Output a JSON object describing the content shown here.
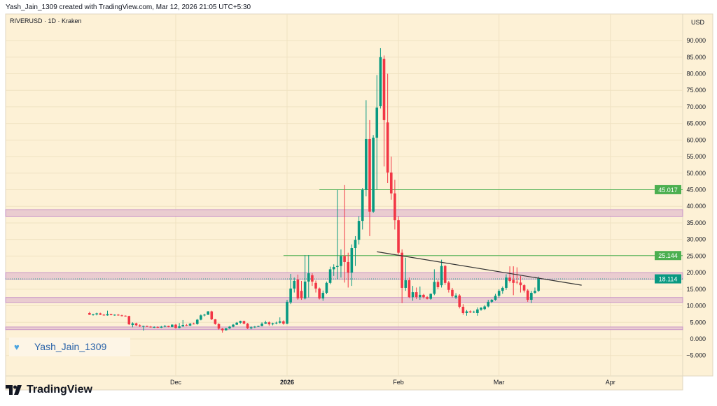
{
  "header": {
    "caption": "Yash_Jain_1309 created with TradingView.com, Mar 12, 2026 21:05 UTC+5:30",
    "symbol": "RIVERUSD · 1D · Kraken"
  },
  "watermark": {
    "text": "Yash_Jain_1309",
    "icon": "blue-heart-icon"
  },
  "footer": {
    "logo_text": "TradingView",
    "icon": "tradingview-logo-icon"
  },
  "colors": {
    "background": "#fdf1d6",
    "up": "#089981",
    "down": "#f23645",
    "zone": "#e9c8d0",
    "zone_border": "#c58fc8",
    "level": "#4caf50",
    "trendline": "#333333"
  },
  "chart_data": {
    "type": "candlestick",
    "currency_label": "USD",
    "ylim": [
      -7,
      93
    ],
    "y_ticks": [
      "90.000",
      "85.000",
      "80.000",
      "75.000",
      "70.000",
      "65.000",
      "60.000",
      "55.000",
      "50.000",
      "45.000",
      "40.000",
      "35.000",
      "30.000",
      "25.000",
      "20.000",
      "15.000",
      "10.000",
      "5.000",
      "0.000",
      "−5.000"
    ],
    "x_ticks": [
      {
        "label": "Dec",
        "date": "2025-12-01"
      },
      {
        "label": "2026",
        "date": "2026-01-01"
      },
      {
        "label": "Feb",
        "date": "2026-02-01"
      },
      {
        "label": "Mar",
        "date": "2026-03-01"
      },
      {
        "label": "Apr",
        "date": "2026-04-01"
      }
    ],
    "grid": true,
    "price_labels": [
      {
        "value": "45.017",
        "kind": "level"
      },
      {
        "value": "25.144",
        "kind": "level"
      },
      {
        "value": "18.114",
        "kind": "last"
      }
    ],
    "horizontal_levels": [
      {
        "price": 45.017,
        "from": "2026-01-10"
      },
      {
        "price": 25.144,
        "from": "2025-12-31"
      }
    ],
    "zones": [
      [
        37,
        39
      ],
      [
        18,
        20
      ],
      [
        11,
        12.5
      ],
      [
        2.8,
        3.6
      ]
    ],
    "trendline": {
      "from": [
        "2026-01-26",
        26.3
      ],
      "to": [
        "2026-03-24",
        16.2
      ]
    },
    "candles_columns": [
      "date",
      "open",
      "high",
      "low",
      "close"
    ],
    "candles": [
      [
        "2025-11-07",
        7.8,
        8.2,
        7.2,
        7.3
      ],
      [
        "2025-11-08",
        7.3,
        7.6,
        7.0,
        7.4
      ],
      [
        "2025-11-09",
        7.4,
        7.9,
        7.1,
        7.7
      ],
      [
        "2025-11-10",
        7.7,
        7.9,
        7.2,
        7.3
      ],
      [
        "2025-11-11",
        7.3,
        7.5,
        7.0,
        7.1
      ],
      [
        "2025-11-12",
        7.1,
        8.5,
        7.0,
        7.5
      ],
      [
        "2025-11-13",
        7.5,
        7.6,
        7.1,
        7.2
      ],
      [
        "2025-11-14",
        7.2,
        7.4,
        7.0,
        7.3
      ],
      [
        "2025-11-15",
        7.3,
        7.5,
        7.0,
        7.1
      ],
      [
        "2025-11-16",
        7.1,
        7.3,
        6.8,
        7.0
      ],
      [
        "2025-11-17",
        7.0,
        7.1,
        6.7,
        6.9
      ],
      [
        "2025-11-18",
        6.9,
        7.0,
        4.2,
        4.4
      ],
      [
        "2025-11-19",
        4.2,
        5.0,
        3.5,
        4.7
      ],
      [
        "2025-11-20",
        4.7,
        4.9,
        3.9,
        4.1
      ],
      [
        "2025-11-21",
        4.1,
        4.4,
        3.6,
        3.8
      ],
      [
        "2025-11-22",
        3.8,
        4.0,
        2.5,
        3.9
      ],
      [
        "2025-11-23",
        3.9,
        4.0,
        3.6,
        3.7
      ],
      [
        "2025-11-24",
        3.7,
        3.9,
        3.4,
        3.5
      ],
      [
        "2025-11-25",
        3.5,
        3.8,
        3.3,
        3.6
      ],
      [
        "2025-11-26",
        3.6,
        3.8,
        3.3,
        3.4
      ],
      [
        "2025-11-27",
        3.4,
        3.9,
        3.3,
        3.7
      ],
      [
        "2025-11-28",
        3.7,
        4.2,
        3.5,
        3.9
      ],
      [
        "2025-11-29",
        3.9,
        4.0,
        3.5,
        3.6
      ],
      [
        "2025-11-30",
        3.6,
        4.4,
        3.5,
        4.3
      ],
      [
        "2025-12-01",
        4.3,
        4.5,
        3.1,
        3.3
      ],
      [
        "2025-12-02",
        3.3,
        4.8,
        3.2,
        3.8
      ],
      [
        "2025-12-03",
        3.8,
        5.7,
        3.6,
        4.2
      ],
      [
        "2025-12-04",
        4.2,
        4.5,
        3.9,
        4.0
      ],
      [
        "2025-12-05",
        4.0,
        4.8,
        3.9,
        4.6
      ],
      [
        "2025-12-06",
        4.6,
        4.9,
        4.4,
        4.5
      ],
      [
        "2025-12-07",
        4.5,
        6.0,
        4.3,
        5.8
      ],
      [
        "2025-12-08",
        5.8,
        7.4,
        5.6,
        7.1
      ],
      [
        "2025-12-09",
        7.1,
        7.6,
        6.8,
        7.3
      ],
      [
        "2025-12-10",
        7.3,
        8.4,
        7.2,
        8.3
      ],
      [
        "2025-12-11",
        8.3,
        8.5,
        5.7,
        5.9
      ],
      [
        "2025-12-12",
        5.9,
        6.0,
        4.3,
        4.5
      ],
      [
        "2025-12-13",
        4.5,
        4.7,
        2.8,
        3.1
      ],
      [
        "2025-12-14",
        3.1,
        3.3,
        1.9,
        2.6
      ],
      [
        "2025-12-15",
        2.6,
        3.3,
        2.5,
        3.2
      ],
      [
        "2025-12-16",
        3.2,
        3.9,
        3.0,
        3.7
      ],
      [
        "2025-12-17",
        3.7,
        4.5,
        3.5,
        4.3
      ],
      [
        "2025-12-18",
        4.3,
        5.1,
        4.2,
        4.9
      ],
      [
        "2025-12-19",
        4.9,
        5.5,
        4.6,
        5.4
      ],
      [
        "2025-12-20",
        5.4,
        5.5,
        4.4,
        4.6
      ],
      [
        "2025-12-21",
        4.6,
        4.8,
        3.0,
        3.2
      ],
      [
        "2025-12-22",
        3.2,
        3.8,
        2.9,
        3.5
      ],
      [
        "2025-12-23",
        3.5,
        3.9,
        3.3,
        3.7
      ],
      [
        "2025-12-24",
        3.7,
        4.0,
        3.6,
        3.9
      ],
      [
        "2025-12-25",
        3.9,
        5.0,
        3.8,
        4.6
      ],
      [
        "2025-12-26",
        4.6,
        5.5,
        4.5,
        5.0
      ],
      [
        "2025-12-27",
        5.0,
        5.3,
        4.0,
        4.4
      ],
      [
        "2025-12-28",
        4.4,
        4.9,
        4.1,
        4.7
      ],
      [
        "2025-12-29",
        4.7,
        5.2,
        4.4,
        4.9
      ],
      [
        "2025-12-30",
        4.9,
        6.5,
        4.6,
        5.3
      ],
      [
        "2025-12-31",
        5.3,
        5.6,
        4.3,
        4.6
      ],
      [
        "2026-01-01",
        4.6,
        11.8,
        4.4,
        11.2
      ],
      [
        "2026-01-02",
        11.0,
        19.6,
        10.5,
        15.2
      ],
      [
        "2026-01-03",
        15.2,
        18.5,
        14.0,
        17.5
      ],
      [
        "2026-01-04",
        17.9,
        19.4,
        11.8,
        12.2
      ],
      [
        "2026-01-05",
        14.5,
        17.5,
        11.8,
        12.3
      ],
      [
        "2026-01-06",
        12.2,
        25.3,
        11.9,
        17.3
      ],
      [
        "2026-01-07",
        17.3,
        25.3,
        12.5,
        19.8
      ],
      [
        "2026-01-08",
        19.2,
        19.8,
        16.0,
        17.3
      ],
      [
        "2026-01-09",
        16.9,
        17.6,
        14.0,
        15.2
      ],
      [
        "2026-01-10",
        15.2,
        15.5,
        11.9,
        12.2
      ],
      [
        "2026-01-11",
        12.2,
        14.6,
        11.5,
        13.9
      ],
      [
        "2026-01-12",
        13.9,
        17.3,
        13.5,
        16.9
      ],
      [
        "2026-01-13",
        16.9,
        21.8,
        16.5,
        21.0
      ],
      [
        "2026-01-14",
        21.0,
        22.5,
        19.0,
        21.7
      ],
      [
        "2026-01-15",
        21.7,
        45.0,
        18.0,
        22.0
      ],
      [
        "2026-01-16",
        22.0,
        27.0,
        18.5,
        25.0
      ],
      [
        "2026-01-17",
        25.0,
        46.4,
        17.0,
        23.2
      ],
      [
        "2026-01-18",
        23.2,
        26.0,
        15.5,
        20.0
      ],
      [
        "2026-01-19",
        20.0,
        28.5,
        16.0,
        27.4
      ],
      [
        "2026-01-20",
        27.4,
        31.0,
        22.0,
        29.9
      ],
      [
        "2026-01-21",
        29.9,
        37.0,
        28.5,
        35.6
      ],
      [
        "2026-01-22",
        35.6,
        45.5,
        33.0,
        45.0
      ],
      [
        "2026-01-23",
        45.0,
        72.0,
        43.0,
        60.3
      ],
      [
        "2026-01-24",
        60.3,
        66.0,
        31.0,
        38.4
      ],
      [
        "2026-01-25",
        38.4,
        61.5,
        38.0,
        60.7
      ],
      [
        "2026-01-26",
        60.7,
        79.6,
        45.0,
        69.8
      ],
      [
        "2026-01-27",
        70.2,
        87.7,
        69.5,
        85.0
      ],
      [
        "2026-01-28",
        84.5,
        85.5,
        52.0,
        66.0
      ],
      [
        "2026-01-29",
        65.3,
        80.0,
        47.0,
        50.2
      ],
      [
        "2026-01-30",
        50.2,
        55.0,
        42.0,
        43.9
      ],
      [
        "2026-01-31",
        43.9,
        48.0,
        33.0,
        35.8
      ],
      [
        "2026-02-01",
        35.8,
        37.0,
        25.5,
        26.0
      ],
      [
        "2026-02-02",
        26.0,
        27.0,
        10.8,
        15.4
      ],
      [
        "2026-02-03",
        15.4,
        24.5,
        14.5,
        17.7
      ],
      [
        "2026-02-04",
        17.7,
        18.5,
        12.3,
        12.6
      ],
      [
        "2026-02-05",
        12.6,
        16.0,
        11.5,
        14.1
      ],
      [
        "2026-02-06",
        14.1,
        15.5,
        12.0,
        12.6
      ],
      [
        "2026-02-07",
        12.6,
        15.8,
        11.8,
        13.3
      ],
      [
        "2026-02-08",
        13.3,
        13.6,
        12.2,
        12.6
      ],
      [
        "2026-02-09",
        12.6,
        12.9,
        11.9,
        12.1
      ],
      [
        "2026-02-10",
        12.1,
        13.7,
        11.8,
        13.6
      ],
      [
        "2026-02-11",
        13.6,
        21.0,
        13.2,
        17.2
      ],
      [
        "2026-02-12",
        17.2,
        17.8,
        15.0,
        15.6
      ],
      [
        "2026-02-13",
        16.2,
        23.9,
        15.5,
        22.0
      ],
      [
        "2026-02-14",
        22.0,
        22.3,
        16.3,
        16.9
      ],
      [
        "2026-02-15",
        17.0,
        17.5,
        14.0,
        14.8
      ],
      [
        "2026-02-16",
        14.8,
        15.4,
        12.5,
        12.9
      ],
      [
        "2026-02-17",
        12.5,
        13.8,
        12.0,
        13.1
      ],
      [
        "2026-02-18",
        13.1,
        13.5,
        9.2,
        9.7
      ],
      [
        "2026-02-19",
        9.7,
        10.5,
        7.3,
        7.8
      ],
      [
        "2026-02-20",
        7.8,
        8.7,
        7.0,
        8.3
      ],
      [
        "2026-02-21",
        8.3,
        8.6,
        7.8,
        8.0
      ],
      [
        "2026-02-22",
        8.0,
        8.5,
        7.8,
        8.2
      ],
      [
        "2026-02-23",
        7.8,
        9.5,
        7.0,
        8.9
      ],
      [
        "2026-02-24",
        8.8,
        9.6,
        8.5,
        9.4
      ],
      [
        "2026-02-25",
        9.0,
        10.2,
        8.7,
        9.8
      ],
      [
        "2026-02-26",
        9.8,
        11.8,
        9.5,
        11.2
      ],
      [
        "2026-02-27",
        11.2,
        12.0,
        10.8,
        11.8
      ],
      [
        "2026-02-28",
        11.8,
        13.6,
        11.5,
        13.0
      ],
      [
        "2026-03-01",
        13.0,
        15.0,
        12.4,
        14.5
      ],
      [
        "2026-03-02",
        14.5,
        15.8,
        13.6,
        15.4
      ],
      [
        "2026-03-03",
        15.4,
        19.5,
        14.8,
        18.5
      ],
      [
        "2026-03-04",
        18.5,
        21.9,
        17.0,
        17.5
      ],
      [
        "2026-03-05",
        17.8,
        21.9,
        13.2,
        16.9
      ],
      [
        "2026-03-06",
        17.2,
        21.6,
        16.5,
        17.0
      ],
      [
        "2026-03-07",
        17.0,
        19.0,
        14.0,
        16.2
      ],
      [
        "2026-03-08",
        16.2,
        16.5,
        14.0,
        14.6
      ],
      [
        "2026-03-09",
        14.6,
        15.0,
        11.2,
        11.8
      ],
      [
        "2026-03-10",
        11.8,
        14.5,
        10.8,
        13.9
      ],
      [
        "2026-03-11",
        13.9,
        15.5,
        13.6,
        14.5
      ],
      [
        "2026-03-12",
        14.5,
        18.8,
        14.2,
        18.114
      ]
    ]
  }
}
